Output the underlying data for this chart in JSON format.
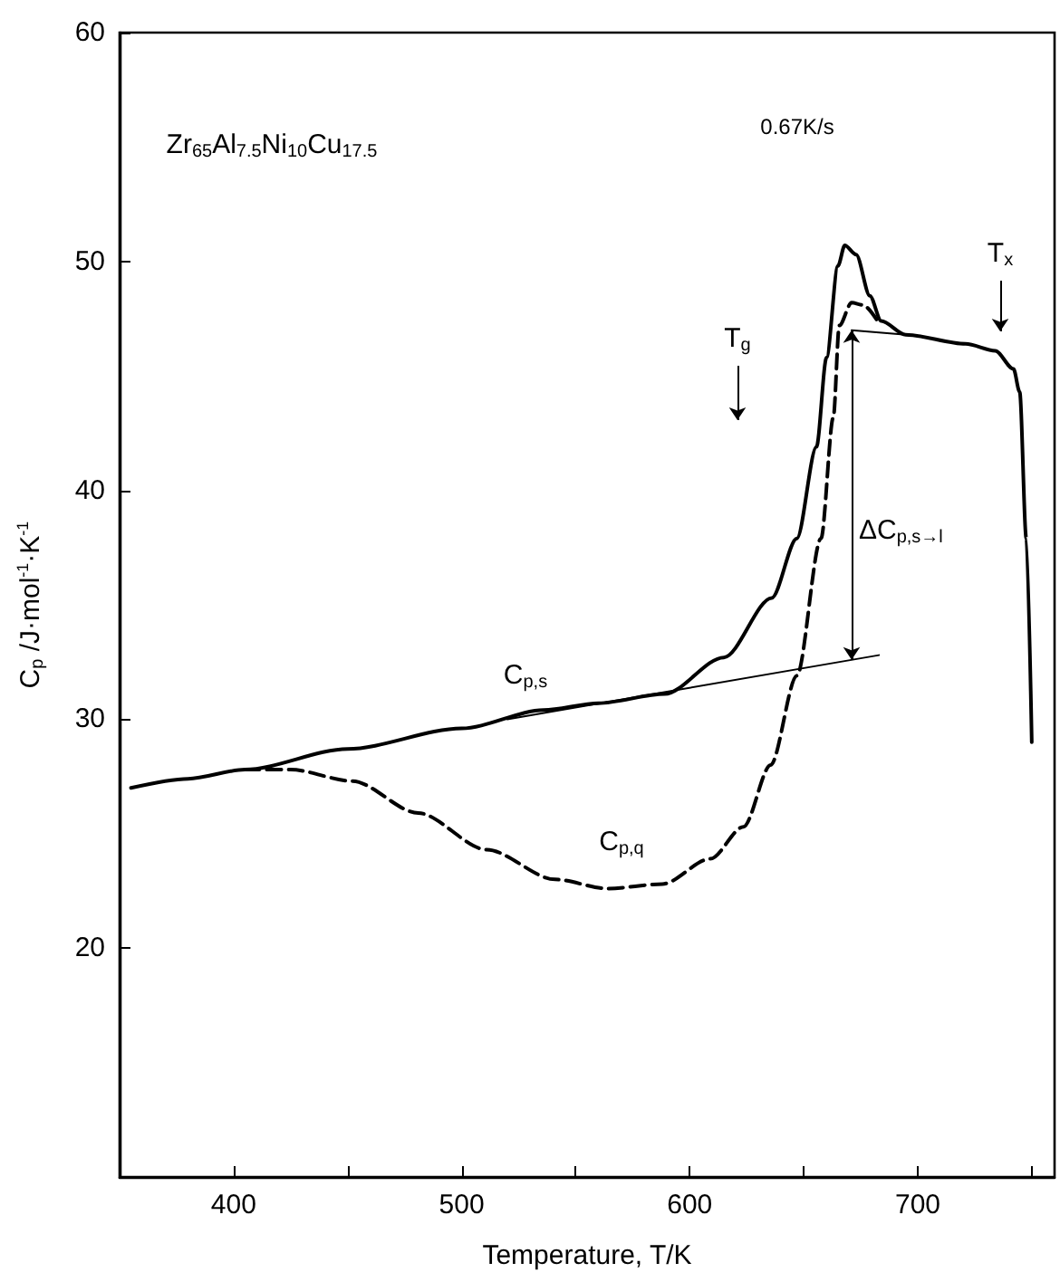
{
  "chart_data": {
    "type": "line",
    "xlabel": "Temperature, T/K",
    "ylabel": "C$_{p}$ /J·mol$^{-1}$·K$^{-1}$",
    "xlim": [
      350,
      760
    ],
    "ylim": [
      10,
      60
    ],
    "xticks": [
      400,
      {
        "value": 450,
        "label": null
      },
      500,
      {
        "value": 550,
        "label": null
      },
      600,
      {
        "value": 650,
        "label": null
      },
      700,
      {
        "value": 750,
        "label": null
      }
    ],
    "yticks": [
      20,
      30,
      40,
      50,
      60
    ],
    "grid": false,
    "marker": "none",
    "series": [
      {
        "color": "#000000",
        "line_style": "solid",
        "x": [
          355,
          380,
          405,
          450,
          500,
          536,
          560,
          589,
          615,
          636,
          647,
          655.6,
          660,
          665,
          668,
          673,
          679,
          684,
          694.7,
          721,
          734,
          742,
          744.7,
          747.6,
          750
        ],
        "values": [
          27.0,
          27.4,
          27.8,
          28.7,
          29.6,
          30.4,
          30.7,
          31.1,
          32.7,
          35.3,
          37.9,
          41.9,
          45.8,
          49.8,
          50.7,
          50.3,
          48.5,
          47.4,
          46.8,
          46.4,
          46.1,
          45.3,
          44.3,
          37.9,
          29.0
        ]
      },
      {
        "color": "#000000",
        "line_style": "dashed",
        "x": [
          405,
          425,
          452,
          481,
          511,
          541,
          564,
          588,
          609,
          623.6,
          635.5,
          647,
          657.6,
          663,
          665.6,
          671,
          676,
          683
        ],
        "values": [
          27.8,
          27.8,
          27.3,
          25.9,
          24.3,
          23.0,
          22.6,
          22.8,
          23.9,
          25.3,
          28.0,
          31.9,
          37.9,
          43.2,
          47.2,
          48.2,
          48.1,
          47.3
        ]
      },
      {
        "color": "#000000",
        "line_style": "solid",
        "x": [
          671,
          695
        ],
        "values": [
          47.0,
          46.8
        ]
      },
      {
        "color": "#000000",
        "line_style": "solid",
        "x": [
          520,
          683
        ],
        "values": [
          30.0,
          32.8
        ]
      }
    ],
    "annotations": [
      "Zr$_{65}$Al$_{7.5}$Ni$_{10}$Cu$_{17.5}$",
      "0.67K/s",
      "T$_{g}$",
      "T$_{x}$",
      "ΔC$_{p,s→l}$",
      "C$_{p,s}$",
      "C$_{p,q}$"
    ]
  }
}
